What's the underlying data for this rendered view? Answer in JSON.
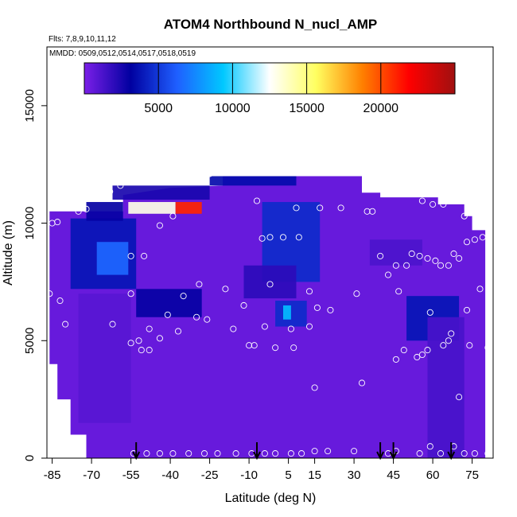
{
  "chart_data": {
    "type": "heatmap",
    "title": "ATOM4 Northbound N_nucl_AMP",
    "flights_label": "Flts: 7,8,9,10,11,12",
    "dates_label": "MMDD: 0509,0512,0514,0517,0518,0519",
    "xlabel": "Latitude (deg N)",
    "ylabel": "Altitude (m)",
    "xlim": [
      -87,
      83
    ],
    "ylim": [
      0,
      17500
    ],
    "x_ticks": [
      -85,
      -70,
      -55,
      -40,
      -25,
      -10,
      5,
      15,
      30,
      45,
      60,
      75
    ],
    "y_ticks": [
      0,
      5000,
      10000,
      15000
    ],
    "colorbar": {
      "range": [
        0,
        25000
      ],
      "ticks": [
        5000,
        10000,
        15000,
        20000
      ],
      "colors": [
        "#7b1fe8",
        "#0000a0",
        "#1f5fff",
        "#00c8ff",
        "#ffffff",
        "#ffff60",
        "#ff8000",
        "#ff0000",
        "#a01010"
      ]
    },
    "background_value": 500,
    "coverage": [
      [
        -86,
        10500
      ],
      [
        -58,
        10500
      ],
      [
        -58,
        11200
      ],
      [
        -40,
        11500
      ],
      [
        -20,
        11600
      ],
      [
        -20,
        12000
      ],
      [
        33,
        12000
      ],
      [
        33,
        11300
      ],
      [
        40,
        11300
      ],
      [
        40,
        11100
      ],
      [
        62,
        11100
      ],
      [
        62,
        10800
      ],
      [
        72,
        10800
      ],
      [
        72,
        10300
      ],
      [
        75,
        10300
      ],
      [
        75,
        9700
      ],
      [
        80,
        9700
      ],
      [
        80,
        0
      ],
      [
        -72,
        0
      ],
      [
        -72,
        1000
      ],
      [
        -78,
        1000
      ],
      [
        -78,
        2500
      ],
      [
        -83,
        2500
      ],
      [
        -83,
        4000
      ],
      [
        -86,
        4000
      ]
    ],
    "features": [
      {
        "x": [
          -78,
          -53
        ],
        "y": [
          7200,
          10200
        ],
        "value": 3800
      },
      {
        "x": [
          -68,
          -56
        ],
        "y": [
          7800,
          9200
        ],
        "value": 6500
      },
      {
        "x": [
          -72,
          -58
        ],
        "y": [
          10100,
          10900
        ],
        "value": 3000
      },
      {
        "x": [
          -62,
          -25
        ],
        "y": [
          11000,
          11600
        ],
        "value": 2500
      },
      {
        "x": [
          -56,
          -38
        ],
        "y": [
          10400,
          10900
        ],
        "value": 13000
      },
      {
        "x": [
          -38,
          -28
        ],
        "y": [
          10400,
          10900
        ],
        "value": 21000
      },
      {
        "x": [
          -25,
          8
        ],
        "y": [
          11600,
          12000
        ],
        "value": 3500
      },
      {
        "x": [
          -5,
          17
        ],
        "y": [
          7500,
          10900
        ],
        "value": 4500
      },
      {
        "x": [
          -53,
          -28
        ],
        "y": [
          6000,
          7200
        ],
        "value": 3000
      },
      {
        "x": [
          -12,
          8
        ],
        "y": [
          6800,
          8200
        ],
        "value": 2000
      },
      {
        "x": [
          0,
          12
        ],
        "y": [
          5600,
          6700
        ],
        "value": 4500
      },
      {
        "x": [
          3,
          6
        ],
        "y": [
          5900,
          6500
        ],
        "value": 9000
      },
      {
        "x": [
          50,
          70
        ],
        "y": [
          5000,
          6900
        ],
        "value": 3800
      },
      {
        "x": [
          36,
          56
        ],
        "y": [
          8200,
          9300
        ],
        "value": 1200
      },
      {
        "x": [
          -75,
          -55
        ],
        "y": [
          1500,
          7000
        ],
        "value": 900
      },
      {
        "x": [
          58,
          72
        ],
        "y": [
          0,
          6000
        ],
        "value": 1300
      }
    ],
    "points": [
      [
        -85,
        10000
      ],
      [
        -83,
        10050
      ],
      [
        -75,
        10500
      ],
      [
        -72,
        10600
      ],
      [
        -69,
        11200
      ],
      [
        -66,
        11300
      ],
      [
        -63,
        11350
      ],
      [
        -59,
        11600
      ],
      [
        -44,
        9900
      ],
      [
        -39,
        10300
      ],
      [
        -25,
        12100
      ],
      [
        -7,
        10950
      ],
      [
        -5,
        9350
      ],
      [
        8,
        10650
      ],
      [
        17,
        10650
      ],
      [
        25,
        10650
      ],
      [
        35,
        10500
      ],
      [
        37,
        10500
      ],
      [
        56,
        10950
      ],
      [
        60,
        10800
      ],
      [
        64,
        10800
      ],
      [
        66,
        11000
      ],
      [
        70,
        11000
      ],
      [
        72,
        10300
      ],
      [
        79,
        9400
      ],
      [
        82,
        9300
      ],
      [
        -55,
        8600
      ],
      [
        -50,
        8600
      ],
      [
        40,
        8600
      ],
      [
        46,
        8200
      ],
      [
        50,
        8200
      ],
      [
        52,
        8700
      ],
      [
        55,
        8600
      ],
      [
        58,
        8500
      ],
      [
        61,
        8400
      ],
      [
        63,
        8200
      ],
      [
        66,
        8200
      ],
      [
        68,
        8700
      ],
      [
        70,
        8500
      ],
      [
        73,
        9200
      ],
      [
        76,
        9300
      ],
      [
        43,
        7800
      ],
      [
        -2,
        9400
      ],
      [
        3,
        9400
      ],
      [
        9,
        9400
      ],
      [
        -86,
        7000
      ],
      [
        -82,
        6700
      ],
      [
        -55,
        7000
      ],
      [
        -35,
        6900
      ],
      [
        -29,
        7400
      ],
      [
        -19,
        7200
      ],
      [
        -12,
        6500
      ],
      [
        -2,
        7400
      ],
      [
        13,
        7100
      ],
      [
        16,
        6400
      ],
      [
        31,
        7000
      ],
      [
        47,
        7100
      ],
      [
        78,
        7200
      ],
      [
        -80,
        5700
      ],
      [
        -62,
        5700
      ],
      [
        -48,
        5500
      ],
      [
        -41,
        6100
      ],
      [
        -30,
        6000
      ],
      [
        -26,
        5900
      ],
      [
        -4,
        5600
      ],
      [
        6,
        5500
      ],
      [
        13,
        5600
      ],
      [
        21,
        6300
      ],
      [
        59,
        6200
      ],
      [
        73,
        6300
      ],
      [
        -44,
        5100
      ],
      [
        -37,
        5400
      ],
      [
        -55,
        4900
      ],
      [
        -51,
        4600
      ],
      [
        -52,
        5000
      ],
      [
        -48,
        4600
      ],
      [
        -16,
        5500
      ],
      [
        -10,
        4800
      ],
      [
        -8,
        4800
      ],
      [
        0,
        4700
      ],
      [
        7,
        4700
      ],
      [
        49,
        4600
      ],
      [
        54,
        4300
      ],
      [
        56,
        4400
      ],
      [
        46,
        4200
      ],
      [
        66,
        5000
      ],
      [
        67,
        5300
      ],
      [
        64,
        4800
      ],
      [
        58,
        4600
      ],
      [
        74,
        4800
      ],
      [
        81,
        4700
      ],
      [
        33,
        3200
      ],
      [
        15,
        3000
      ],
      [
        -86,
        3300
      ],
      [
        -80,
        1300
      ],
      [
        -54,
        200
      ],
      [
        -49,
        200
      ],
      [
        -44,
        200
      ],
      [
        -39,
        200
      ],
      [
        -33,
        200
      ],
      [
        -27,
        200
      ],
      [
        -22,
        200
      ],
      [
        -15,
        200
      ],
      [
        -9,
        200
      ],
      [
        -4,
        200
      ],
      [
        0,
        200
      ],
      [
        6,
        200
      ],
      [
        10,
        200
      ],
      [
        15,
        300
      ],
      [
        20,
        300
      ],
      [
        30,
        300
      ],
      [
        43,
        200
      ],
      [
        46,
        300
      ],
      [
        55,
        200
      ],
      [
        59,
        500
      ],
      [
        63,
        200
      ],
      [
        68,
        500
      ],
      [
        72,
        200
      ],
      [
        76,
        200
      ],
      [
        81,
        200
      ],
      [
        70,
        2600
      ]
    ],
    "arrows_x": [
      -53,
      -7,
      40,
      45,
      67
    ]
  }
}
